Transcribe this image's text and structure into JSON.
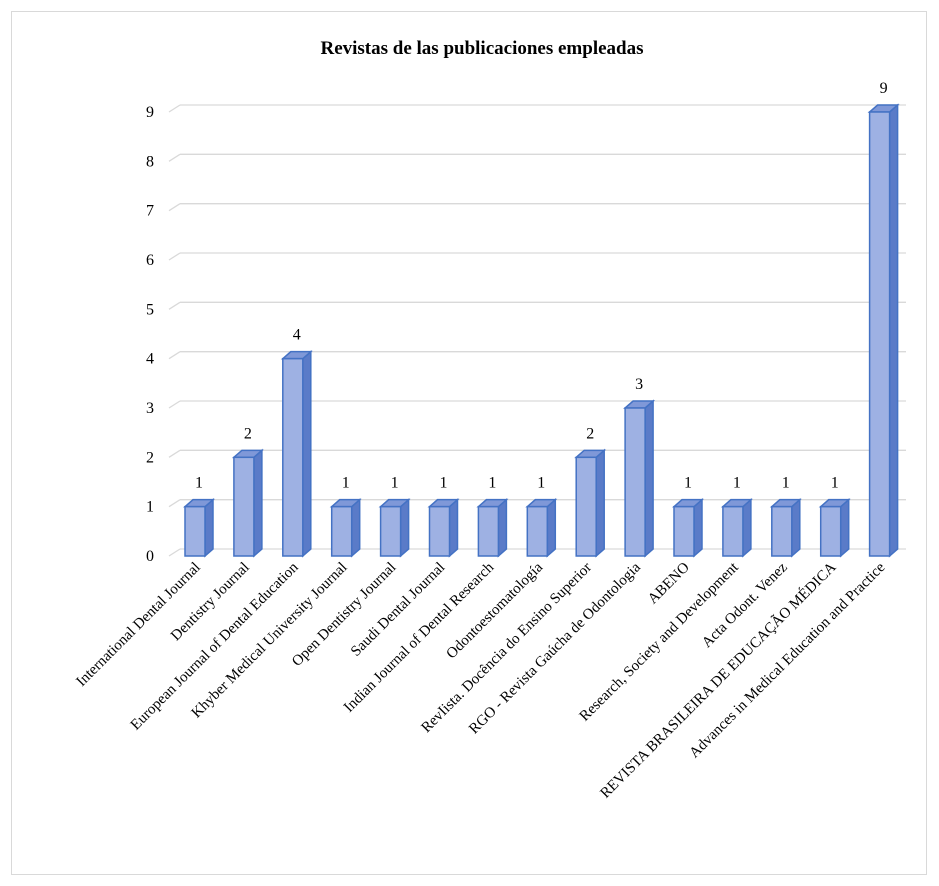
{
  "chart_data": {
    "type": "bar",
    "title": "Revistas de las publicaciones empleadas",
    "xlabel": "",
    "ylabel": "",
    "ylim": [
      0,
      9
    ],
    "yticks": [
      0,
      1,
      2,
      3,
      4,
      5,
      6,
      7,
      8,
      9
    ],
    "grid": true,
    "legend": "none",
    "bar_color": "#9eb1e3",
    "bar_edge_color": "#4472c4",
    "categories": [
      "International Dental Journal",
      "Dentistry Journal",
      "European Journal of Dental Education",
      "Khyber Medical University Journal",
      "Open Dentistry Journal",
      "Saudi Dental Journal",
      "Indian Journal of Dental Research",
      "Odontoestomatología",
      "RevIista. Docência do Ensino Superior",
      "RGO - Revista Gaúcha de Odontologia",
      "ABENO",
      "Research, Society and Development",
      "Acta Odont. Venez",
      "REVISTA BRASILEIRA DE EDUCAÇÃO MÉDICA",
      "Advances in Medical Education and Practice"
    ],
    "values": [
      1,
      2,
      4,
      1,
      1,
      1,
      1,
      1,
      2,
      3,
      1,
      1,
      1,
      1,
      9
    ]
  }
}
